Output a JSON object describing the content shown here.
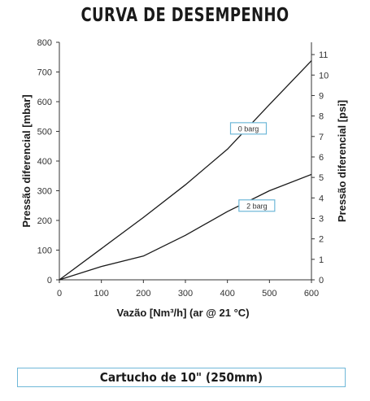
{
  "chart_data": {
    "type": "line",
    "title": "CURVA DE DESEMPENHO",
    "xlabel": "Vazão [Nm³/h] (ar @ 21 °C)",
    "ylabel": "Pressão diferencial [mbar]",
    "y2label": "Pressão diferencial [psi]",
    "xlim": [
      0,
      600
    ],
    "ylim": [
      0,
      800
    ],
    "y2lim": [
      0,
      11.6
    ],
    "x_ticks": [
      0,
      100,
      200,
      300,
      400,
      500,
      600
    ],
    "y_ticks": [
      0,
      100,
      200,
      300,
      400,
      500,
      600,
      700,
      800
    ],
    "y2_ticks": [
      0,
      1,
      2,
      3,
      4,
      5,
      6,
      7,
      8,
      9,
      10,
      11
    ],
    "grid": false,
    "series": [
      {
        "name": "0 barg",
        "label_at": [
          450,
          510
        ],
        "x": [
          0,
          100,
          200,
          300,
          400,
          500,
          600
        ],
        "y": [
          0,
          105,
          210,
          320,
          440,
          590,
          738
        ]
      },
      {
        "name": "2 barg",
        "label_at": [
          470,
          250
        ],
        "x": [
          0,
          100,
          200,
          300,
          400,
          500,
          600
        ],
        "y": [
          0,
          45,
          80,
          150,
          230,
          300,
          355
        ]
      }
    ]
  },
  "caption": "Cartucho de 10\" (250mm)"
}
